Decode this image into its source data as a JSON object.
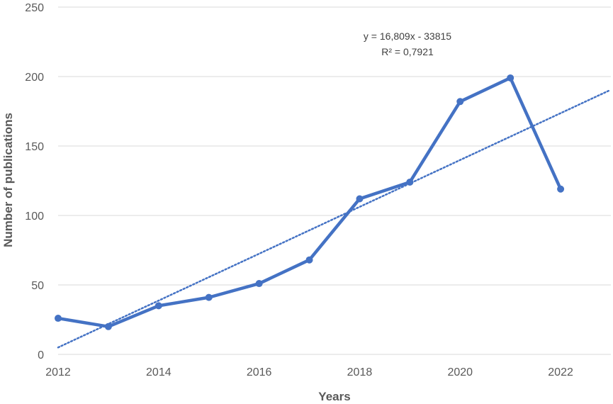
{
  "chart_data": {
    "type": "line",
    "title": "",
    "xlabel": "Years",
    "ylabel": "Number of publications",
    "x": [
      2012,
      2013,
      2014,
      2015,
      2016,
      2017,
      2018,
      2019,
      2020,
      2021,
      2022
    ],
    "series": [
      {
        "values": [
          26,
          20,
          35,
          41,
          51,
          68,
          112,
          124,
          182,
          199,
          119
        ]
      }
    ],
    "trendline": {
      "type": "linear",
      "equation": "y = 16,809x - 33815",
      "r_squared": "R² = 0,7921",
      "x_range": [
        2012,
        2022.97
      ],
      "y_range": [
        5,
        190
      ]
    },
    "xlim": [
      2012,
      2023
    ],
    "ylim": [
      0,
      250
    ],
    "xticks": [
      "2012",
      "2014",
      "2016",
      "2018",
      "2020",
      "2022"
    ],
    "yticks": [
      "0",
      "50",
      "100",
      "150",
      "200",
      "250"
    ],
    "grid": true,
    "legend": "none",
    "colors": {
      "series": "#4472C4",
      "grid": "#D9D9D9",
      "text": "#595959"
    }
  }
}
